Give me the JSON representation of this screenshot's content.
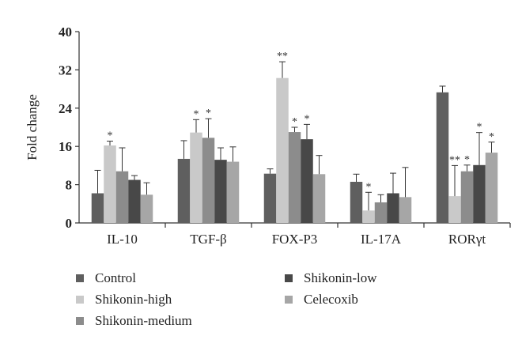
{
  "chart_data": {
    "type": "bar",
    "ylabel": "Fold change",
    "ylim": [
      0,
      40
    ],
    "yticks": [
      "0",
      "8",
      "16",
      "24",
      "32",
      "40"
    ],
    "categories": [
      "IL-10",
      "TGF-β",
      "FOX-P3",
      "IL-17A",
      "RORγt"
    ],
    "series": [
      {
        "name": "Control",
        "color": "#5f5f5f",
        "values": [
          6.2,
          13.4,
          10.3,
          8.6,
          27.3
        ],
        "errors": [
          4.8,
          3.8,
          1.0,
          1.6,
          1.3
        ],
        "stars": [
          "",
          "",
          "",
          "",
          ""
        ]
      },
      {
        "name": "Shikonin-high",
        "color": "#c9c9c9",
        "values": [
          16.2,
          18.9,
          30.3,
          2.6,
          5.6
        ],
        "errors": [
          0.9,
          2.7,
          3.4,
          3.8,
          6.4
        ],
        "stars": [
          "*",
          "*",
          "**",
          "*",
          "**"
        ]
      },
      {
        "name": "Shikonin-medium",
        "color": "#8c8c8c",
        "values": [
          10.8,
          17.8,
          19.0,
          4.3,
          10.8
        ],
        "errors": [
          4.9,
          4.0,
          1.0,
          1.6,
          1.3
        ],
        "stars": [
          "",
          "*",
          "*",
          "",
          "*"
        ]
      },
      {
        "name": "Shikonin-low",
        "color": "#484848",
        "values": [
          9.0,
          13.2,
          17.5,
          6.2,
          12.1
        ],
        "errors": [
          0.9,
          2.5,
          3.1,
          4.2,
          6.8
        ],
        "stars": [
          "",
          "",
          "*",
          "",
          "*"
        ]
      },
      {
        "name": "Celecoxib",
        "color": "#a6a6a6",
        "values": [
          5.9,
          12.8,
          10.2,
          5.4,
          14.7
        ],
        "errors": [
          2.5,
          3.1,
          3.9,
          6.2,
          2.2
        ],
        "stars": [
          "",
          "",
          "",
          "",
          "*"
        ]
      }
    ],
    "legend_position": "bottom",
    "grid": false
  }
}
